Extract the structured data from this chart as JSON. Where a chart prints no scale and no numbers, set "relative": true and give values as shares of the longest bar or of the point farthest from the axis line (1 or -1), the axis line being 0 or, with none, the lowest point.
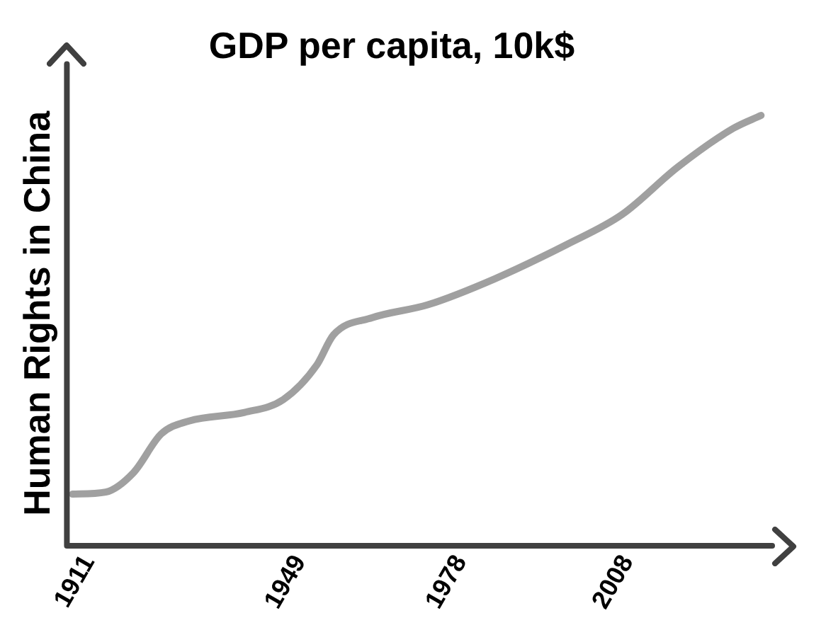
{
  "chart_data": {
    "type": "line",
    "title": "GDP per capita, 10k$",
    "ylabel": "Human Rights in China",
    "relative": true,
    "x": [
      1908,
      1914,
      1919,
      1924,
      1929,
      1939,
      1946,
      1952,
      1955,
      1962,
      1972,
      1984,
      1997,
      2007,
      2017,
      2027,
      2032
    ],
    "series": [
      {
        "color": "#a0a0a0",
        "values": [
          0.12,
          0.125,
          0.17,
          0.26,
          0.29,
          0.31,
          0.34,
          0.42,
          0.49,
          0.53,
          0.56,
          0.62,
          0.7,
          0.77,
          0.88,
          0.97,
          1
        ]
      }
    ],
    "xlim": [
      1907,
      2034
    ],
    "xticks": [
      1911,
      1949,
      1978,
      2008
    ],
    "grid": false,
    "legend": false,
    "marker": "none",
    "line_style": "solid"
  }
}
